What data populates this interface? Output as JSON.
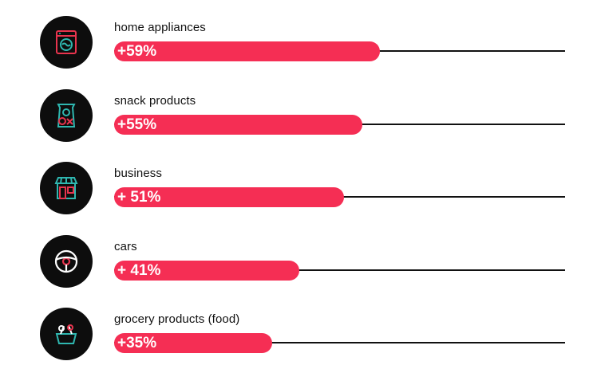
{
  "chart_data": {
    "type": "bar",
    "orientation": "horizontal",
    "categories": [
      "home appliances",
      "snack products",
      "business",
      "cars",
      "grocery products (food)"
    ],
    "values": [
      59,
      55,
      51,
      41,
      35
    ],
    "value_labels": [
      "+59%",
      "+55%",
      "+ 51%",
      "+ 41%",
      "+35%"
    ],
    "xlim": [
      0,
      100
    ],
    "icons": [
      "washing-machine-icon",
      "snack-bag-icon",
      "storefront-icon",
      "steering-wheel-icon",
      "grocery-basket-icon"
    ],
    "colors": {
      "bar": "#f52e54",
      "track": "#111111",
      "icon_bg": "#0d0d0d",
      "icon_accent_1": "#e8344e",
      "icon_accent_2": "#2fb7b0"
    }
  }
}
